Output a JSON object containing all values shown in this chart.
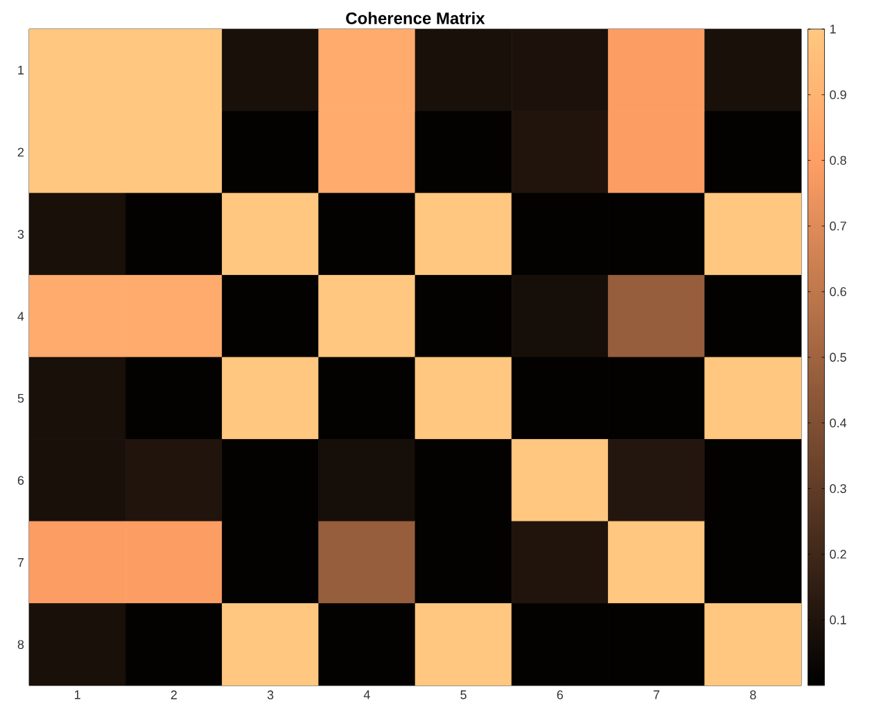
{
  "chart_data": {
    "type": "heatmap",
    "title": "Coherence Matrix",
    "categories": [
      "1",
      "2",
      "3",
      "4",
      "5",
      "6",
      "7",
      "8"
    ],
    "y_categories": [
      "1",
      "2",
      "3",
      "4",
      "5",
      "6",
      "7",
      "8"
    ],
    "cells": [
      [
        1,
        1,
        0.08,
        0.86,
        0.08,
        0.09,
        0.79,
        0.08
      ],
      [
        1,
        1,
        0.01,
        0.86,
        0.01,
        0.1,
        0.79,
        0.01
      ],
      [
        0.08,
        0.01,
        1,
        0.01,
        1,
        0.01,
        0.01,
        1
      ],
      [
        0.86,
        0.86,
        0.01,
        1,
        0.01,
        0.07,
        0.47,
        0.01
      ],
      [
        0.08,
        0.01,
        1,
        0.01,
        1,
        0.01,
        0.01,
        1
      ],
      [
        0.08,
        0.1,
        0.01,
        0.07,
        0.01,
        1,
        0.11,
        0.01
      ],
      [
        0.79,
        0.79,
        0.01,
        0.47,
        0.01,
        0.1,
        1,
        0.01
      ],
      [
        0.08,
        0.01,
        1,
        0.01,
        1,
        0.01,
        0.01,
        1
      ]
    ],
    "clim": [
      0,
      1
    ],
    "cticks": [
      0.1,
      0.2,
      0.3,
      0.4,
      0.5,
      0.6,
      0.7,
      0.8,
      0.9,
      1
    ]
  }
}
